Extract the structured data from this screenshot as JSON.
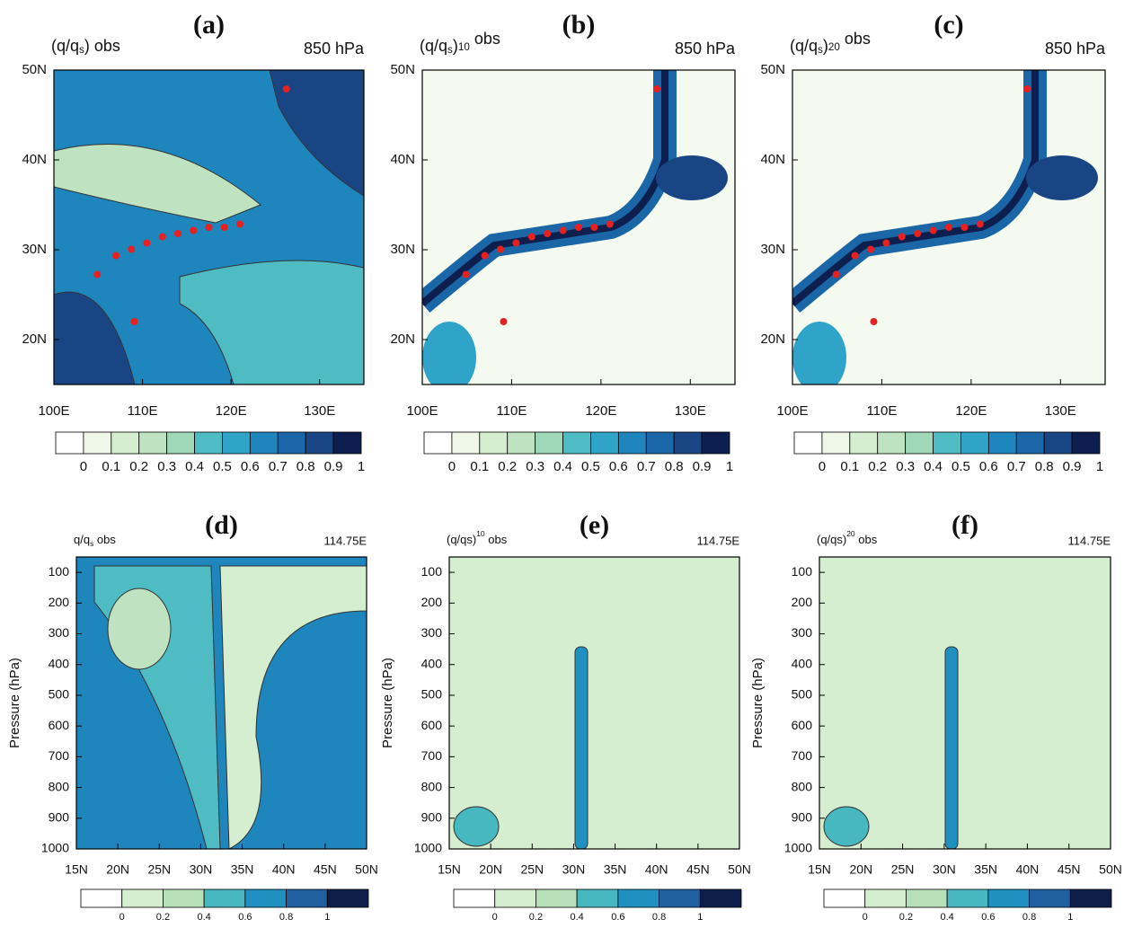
{
  "panels": [
    {
      "label": "(a)",
      "title": [
        {
          "t": "(q/q"
        },
        {
          "sub": "s"
        },
        {
          "t": ") obs"
        }
      ],
      "level": "850 hPa",
      "xticks": [
        "100E",
        "110E",
        "120E",
        "130E"
      ],
      "yticks": [
        "50N",
        "40N",
        "30N",
        "20N"
      ],
      "colorbar": [
        "0",
        "0.1",
        "0.2",
        "0.3",
        "0.4",
        "0.5",
        "0.6",
        "0.7",
        "0.8",
        "0.9",
        "1"
      ]
    },
    {
      "label": "(b)",
      "title": [
        {
          "t": "(q/q"
        },
        {
          "sub": "s"
        },
        {
          "t": ")"
        },
        {
          "sup": "10"
        },
        {
          "t": " obs"
        }
      ],
      "level": "850 hPa",
      "xticks": [
        "100E",
        "110E",
        "120E",
        "130E"
      ],
      "yticks": [
        "50N",
        "40N",
        "30N",
        "20N"
      ],
      "colorbar": [
        "0",
        "0.1",
        "0.2",
        "0.3",
        "0.4",
        "0.5",
        "0.6",
        "0.7",
        "0.8",
        "0.9",
        "1"
      ]
    },
    {
      "label": "(c)",
      "title": [
        {
          "t": "(q/q"
        },
        {
          "sub": "s"
        },
        {
          "t": ")"
        },
        {
          "sup": "20"
        },
        {
          "t": " obs"
        }
      ],
      "level": "850 hPa",
      "xticks": [
        "100E",
        "110E",
        "120E",
        "130E"
      ],
      "yticks": [
        "50N",
        "40N",
        "30N",
        "20N"
      ],
      "colorbar": [
        "0",
        "0.1",
        "0.2",
        "0.3",
        "0.4",
        "0.5",
        "0.6",
        "0.7",
        "0.8",
        "0.9",
        "1"
      ]
    },
    {
      "label": "(d)",
      "title": [
        {
          "t": "q/q"
        },
        {
          "sub": "s"
        },
        {
          "t": " obs"
        }
      ],
      "level": "114.75E",
      "ylabel": "Pressure (hPa)",
      "xticks": [
        "15N",
        "20N",
        "25N",
        "30N",
        "35N",
        "40N",
        "45N",
        "50N"
      ],
      "yticks": [
        "100",
        "200",
        "300",
        "400",
        "500",
        "600",
        "700",
        "800",
        "900",
        "1000"
      ],
      "colorbar": [
        "0",
        "0.2",
        "0.4",
        "0.6",
        "0.8",
        "1"
      ]
    },
    {
      "label": "(e)",
      "title": [
        {
          "t": "(q/qs)"
        },
        {
          "sup": "10"
        },
        {
          "t": " obs"
        }
      ],
      "level": "114.75E",
      "ylabel": "Pressure (hPa)",
      "xticks": [
        "15N",
        "20N",
        "25N",
        "30N",
        "35N",
        "40N",
        "45N",
        "50N"
      ],
      "yticks": [
        "100",
        "200",
        "300",
        "400",
        "500",
        "600",
        "700",
        "800",
        "900",
        "1000"
      ],
      "colorbar": [
        "0",
        "0.2",
        "0.4",
        "0.6",
        "0.8",
        "1"
      ]
    },
    {
      "label": "(f)",
      "title": [
        {
          "t": "(q/qs)"
        },
        {
          "sup": "20"
        },
        {
          "t": " obs"
        }
      ],
      "level": "114.75E",
      "ylabel": "Pressure (hPa)",
      "xticks": [
        "15N",
        "20N",
        "25N",
        "30N",
        "35N",
        "40N",
        "45N",
        "50N"
      ],
      "yticks": [
        "100",
        "200",
        "300",
        "400",
        "500",
        "600",
        "700",
        "800",
        "900",
        "1000"
      ],
      "colorbar": [
        "0",
        "0.2",
        "0.4",
        "0.6",
        "0.8",
        "1"
      ]
    }
  ]
}
